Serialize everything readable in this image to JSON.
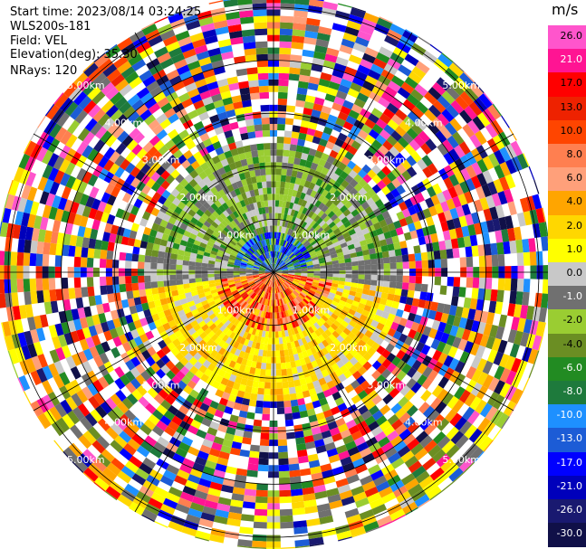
{
  "header": {
    "start_time": "Start time: 2023/08/14 03:24:25",
    "instrument": "WLS200s-181",
    "field": "Field: VEL",
    "elevation": "Elevation(deg): 35.30",
    "nrays": "NRays: 120"
  },
  "colorbar": {
    "unit": "m/s",
    "labels": [
      "26.0",
      "21.0",
      "17.0",
      "13.0",
      "10.0",
      "8.0",
      "6.0",
      "4.0",
      "2.0",
      "1.0",
      "0.0",
      "-1.0",
      "-2.0",
      "-4.0",
      "-6.0",
      "-8.0",
      "-10.0",
      "-13.0",
      "-17.0",
      "-21.0",
      "-26.0",
      "-30.0"
    ],
    "colors": [
      "#ff55cc",
      "#ff1493",
      "#ff0000",
      "#ee2200",
      "#ff4500",
      "#ff7f50",
      "#ffa07a",
      "#ffa500",
      "#ffd700",
      "#ffff00",
      "#c8c8c8",
      "#707070",
      "#9acd32",
      "#6b8e23",
      "#228b22",
      "#1e7a3c",
      "#1e90ff",
      "#1c5cd6",
      "#0000ff",
      "#0000bb",
      "#191970",
      "#101048"
    ],
    "label_colors": [
      "#000000",
      "#ffffff",
      "#000000",
      "#000000",
      "#000000",
      "#000000",
      "#000000",
      "#000000",
      "#000000",
      "#000000",
      "#000000",
      "#ffffff",
      "#000000",
      "#000000",
      "#ffffff",
      "#ffffff",
      "#ffffff",
      "#ffffff",
      "#ffffff",
      "#ffffff",
      "#ffffff",
      "#ffffff"
    ]
  },
  "chart_data": {
    "type": "heatmap",
    "subtype": "polar-ppi",
    "field": "VEL",
    "units": "m/s",
    "elevation_deg": 35.3,
    "n_rays": 120,
    "range_rings_km": [
      1.0,
      2.0,
      3.0,
      4.0,
      5.0
    ],
    "ring_labels": [
      "1.00km",
      "2.00km",
      "3.00km",
      "4.00km",
      "5.00km"
    ],
    "max_range_km": 5.3,
    "spokes_deg": [
      0,
      30,
      60,
      90,
      120,
      150,
      180,
      210,
      240,
      270,
      300,
      330
    ],
    "pattern": "negative (blue/green) velocities north of radar, positive (red/orange/yellow) velocities south of radar within ~2 km; noisy multicolour returns beyond ~2.5 km"
  }
}
